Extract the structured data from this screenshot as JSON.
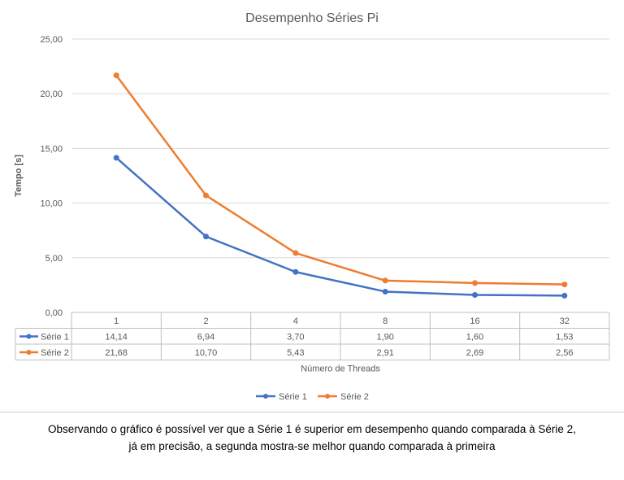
{
  "chart_data": {
    "type": "line",
    "title": "Desempenho Séries Pi",
    "xlabel": "Número de Threads",
    "ylabel": "Tempo [s]",
    "categories": [
      "1",
      "2",
      "4",
      "8",
      "16",
      "32"
    ],
    "ylim": [
      0,
      25
    ],
    "yticks": [
      "0,00",
      "5,00",
      "10,00",
      "15,00",
      "20,00",
      "25,00"
    ],
    "grid": true,
    "legend": "bottom",
    "data_table": true,
    "series": [
      {
        "name": "Série 1",
        "color": "#4472c4",
        "values": [
          14.14,
          6.94,
          3.7,
          1.9,
          1.6,
          1.53
        ],
        "labels": [
          "14,14",
          "6,94",
          "3,70",
          "1,90",
          "1,60",
          "1,53"
        ]
      },
      {
        "name": "Série 2",
        "color": "#ed7d31",
        "values": [
          21.68,
          10.7,
          5.43,
          2.91,
          2.69,
          2.56
        ],
        "labels": [
          "21,68",
          "10,70",
          "5,43",
          "2,91",
          "2,69",
          "2,56"
        ]
      }
    ]
  },
  "caption": {
    "line1": "Observando o gráfico é possível ver que a Série 1 é superior em desempenho quando comparada à Série 2,",
    "line2": "já em precisão, a segunda mostra-se melhor quando comparada à primeira"
  }
}
